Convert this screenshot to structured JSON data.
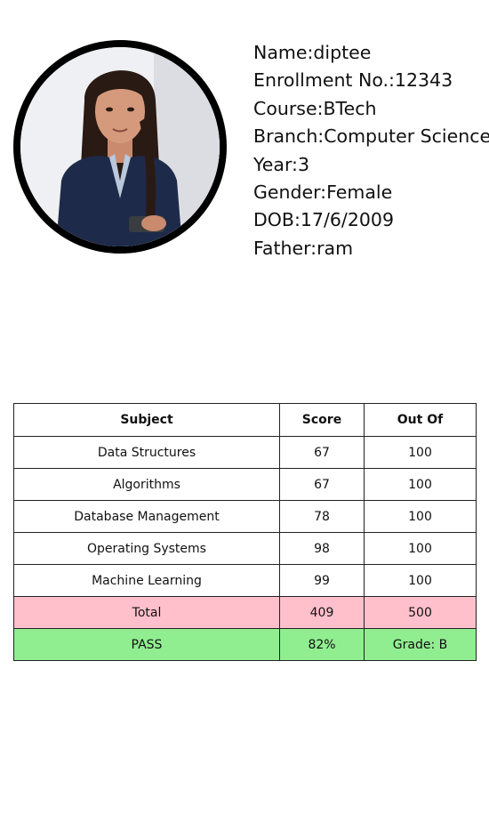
{
  "profile": {
    "name_line": "Name:diptee",
    "enrollment_line": "Enrollment No.:12343",
    "course_line": "Course:BTech",
    "branch_line": "Branch:Computer Science",
    "year_line": "Year:3",
    "gender_line": "Gender:Female",
    "dob_line": "DOB:17/6/2009",
    "father_line": "Father:ram"
  },
  "table": {
    "headers": [
      "Subject",
      "Score",
      "Out Of"
    ],
    "rows": [
      [
        "Data Structures",
        "67",
        "100"
      ],
      [
        "Algorithms",
        "67",
        "100"
      ],
      [
        "Database Management",
        "78",
        "100"
      ],
      [
        "Operating Systems",
        "98",
        "100"
      ],
      [
        "Machine Learning",
        "99",
        "100"
      ]
    ],
    "total": [
      "Total",
      "409",
      "500"
    ],
    "result": [
      "PASS",
      "82%",
      "Grade: B"
    ]
  },
  "colors": {
    "total_row": "#ffc0cb",
    "result_row": "#90ee90",
    "photo_ring": "#000000"
  }
}
